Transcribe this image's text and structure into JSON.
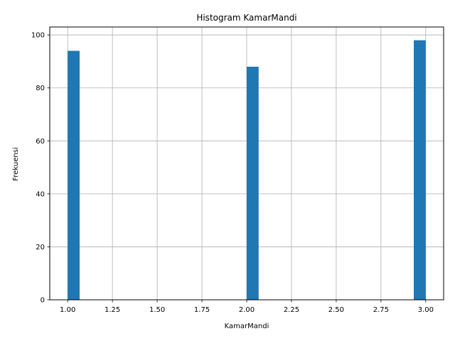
{
  "chart_data": {
    "type": "bar",
    "title": "Histogram KamarMandi",
    "xlabel": "KamarMandi",
    "ylabel": "Frekuensi",
    "bins": [
      {
        "start": 1.0,
        "end": 1.0667,
        "value": 94
      },
      {
        "start": 2.0,
        "end": 2.0667,
        "value": 88
      },
      {
        "start": 2.9333,
        "end": 3.0,
        "value": 98
      }
    ],
    "xlim": [
      0.9,
      3.1
    ],
    "ylim": [
      0,
      103
    ],
    "xticks": [
      "1.00",
      "1.25",
      "1.50",
      "1.75",
      "2.00",
      "2.25",
      "2.50",
      "2.75",
      "3.00"
    ],
    "yticks": [
      "0",
      "20",
      "40",
      "60",
      "80",
      "100"
    ],
    "grid": true,
    "bar_color": "#1f77b4"
  }
}
